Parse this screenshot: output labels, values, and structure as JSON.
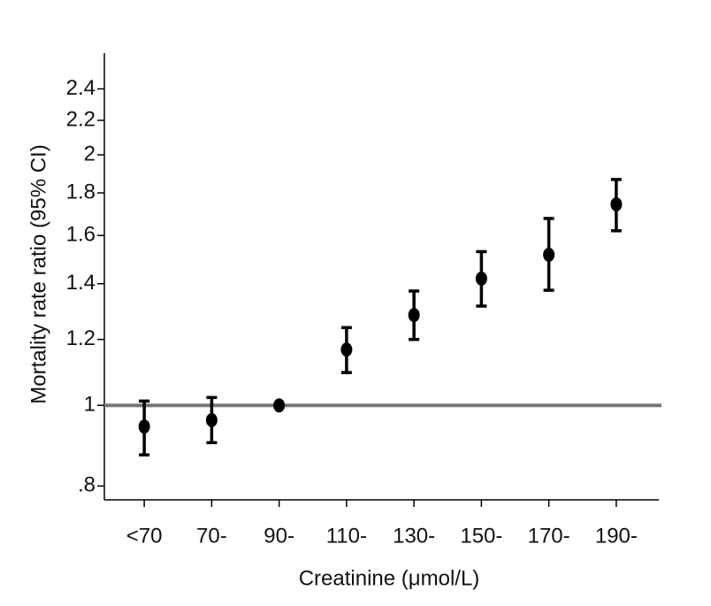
{
  "chart_data": {
    "type": "errorbar",
    "x_label": "Creatinine (μmol/L)",
    "y_label": "Mortality rate ratio (95% CI)",
    "categories": [
      "<70",
      "70-",
      "90-",
      "110-",
      "130-",
      "150-",
      "170-",
      "190-"
    ],
    "series": [
      {
        "name": "Mortality rate ratio",
        "color": "#000000",
        "values": [
          0.943,
          0.96,
          1.0,
          1.167,
          1.284,
          1.42,
          1.517,
          1.744
        ],
        "lower": [
          0.872,
          0.902,
          1.0,
          1.095,
          1.2,
          1.316,
          1.375,
          1.621
        ],
        "upper": [
          1.012,
          1.022,
          1.0,
          1.24,
          1.372,
          1.53,
          1.677,
          1.868
        ]
      }
    ],
    "ylim": [
      0.77,
      2.65
    ],
    "log_y": true,
    "yticks": [
      {
        "value": 0.8,
        "label": ".8"
      },
      1,
      1.2,
      1.4,
      1.6,
      1.8,
      2,
      2.2,
      2.4
    ],
    "reference_line": 1,
    "reference_color": "#777777"
  }
}
